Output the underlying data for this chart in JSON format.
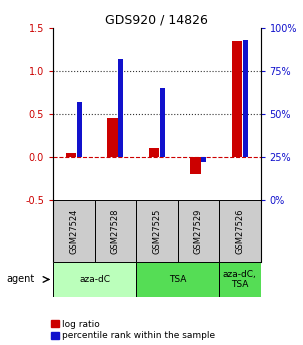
{
  "title": "GDS920 / 14826",
  "samples": [
    "GSM27524",
    "GSM27528",
    "GSM27525",
    "GSM27529",
    "GSM27526"
  ],
  "log_ratio": [
    0.05,
    0.45,
    0.1,
    -0.2,
    1.35
  ],
  "percentile_rank": [
    0.57,
    0.82,
    0.65,
    0.22,
    0.93
  ],
  "bar_color_red": "#cc0000",
  "bar_color_blue": "#1111cc",
  "agent_groups": [
    {
      "label": "aza-dC",
      "start": 0,
      "end": 2,
      "color": "#bbffbb"
    },
    {
      "label": "TSA",
      "start": 2,
      "end": 4,
      "color": "#55dd55"
    },
    {
      "label": "aza-dC,\nTSA",
      "start": 4,
      "end": 5,
      "color": "#55dd55"
    }
  ],
  "ylim_left": [
    -0.5,
    1.5
  ],
  "ylim_right": [
    0,
    100
  ],
  "yticks_left": [
    -0.5,
    0.0,
    0.5,
    1.0,
    1.5
  ],
  "yticks_right": [
    0,
    25,
    50,
    75,
    100
  ],
  "hlines_y": [
    0.0,
    0.5,
    1.0
  ],
  "hlines_styles": [
    "dashed",
    "dotted",
    "dotted"
  ],
  "hlines_colors": [
    "#cc0000",
    "#333333",
    "#333333"
  ],
  "red_bar_width": 0.25,
  "blue_bar_width": 0.12,
  "legend_labels": [
    "log ratio",
    "percentile rank within the sample"
  ],
  "agent_label": "agent",
  "sample_bg_color": "#cccccc",
  "sample_bg_color_last": "#cccccc"
}
